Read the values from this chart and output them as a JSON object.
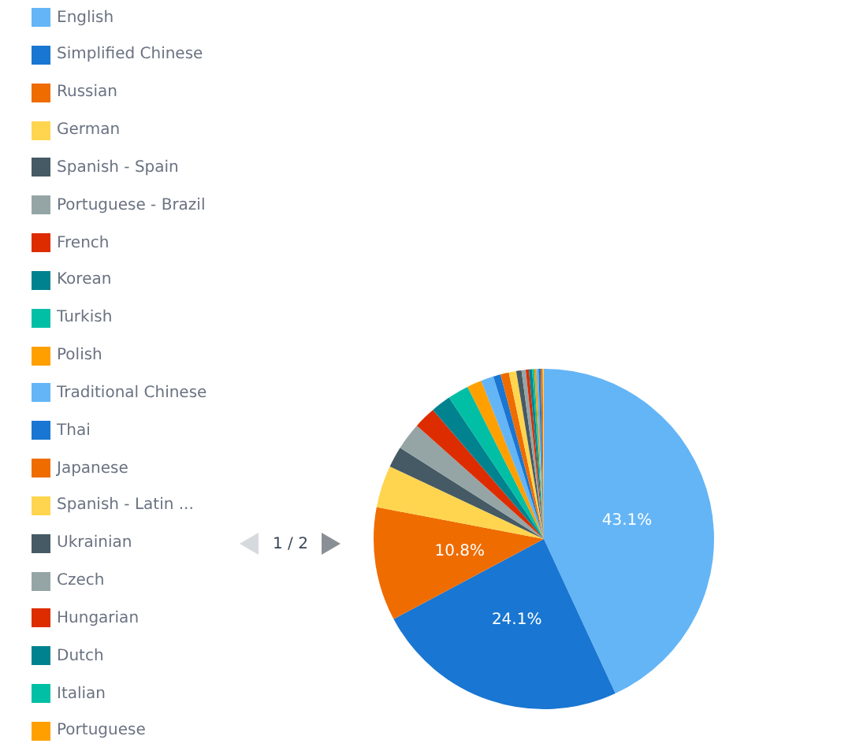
{
  "chart_data": {
    "type": "pie",
    "categories": [
      "English",
      "Simplified Chinese",
      "Russian",
      "German",
      "Spanish - Spain",
      "Portuguese - Brazil",
      "French",
      "Korean",
      "Turkish",
      "Polish",
      "Traditional Chinese",
      "Thai",
      "Japanese",
      "Spanish - Latin ...",
      "Ukrainian",
      "Czech",
      "Hungarian",
      "Dutch",
      "Italian",
      "Portuguese",
      null,
      null,
      null,
      null
    ],
    "values": [
      43.1,
      24.1,
      10.8,
      4.0,
      2.0,
      2.6,
      2.1,
      1.9,
      2.0,
      1.4,
      1.2,
      0.7,
      0.8,
      0.7,
      0.5,
      0.4,
      0.3,
      0.3,
      0.2,
      0.2,
      0.2,
      0.2,
      0.2,
      0.1
    ],
    "colors": [
      "#64b5f6",
      "#1976d2",
      "#ef6c00",
      "#ffd54f",
      "#455a64",
      "#95a5a6",
      "#dd2c00",
      "#00838f",
      "#00bfa5",
      "#ffa000",
      "#64b5f6",
      "#1976d2",
      "#ef6c00",
      "#ffd54f",
      "#455a64",
      "#95a5a6",
      "#dd2c00",
      "#00838f",
      "#00bfa5",
      "#ffa000",
      "#64b5f6",
      "#1976d2",
      "#ef6c00",
      "#ffd54f"
    ],
    "value_labels": [
      "43.1%",
      "24.1%",
      "10.8%",
      null,
      null,
      null,
      null,
      null,
      null,
      null,
      null,
      null,
      null,
      null,
      null,
      null,
      null,
      null,
      null,
      null,
      null,
      null,
      null,
      null
    ],
    "legend": "left",
    "annotations": [
      "1 / 2"
    ]
  }
}
